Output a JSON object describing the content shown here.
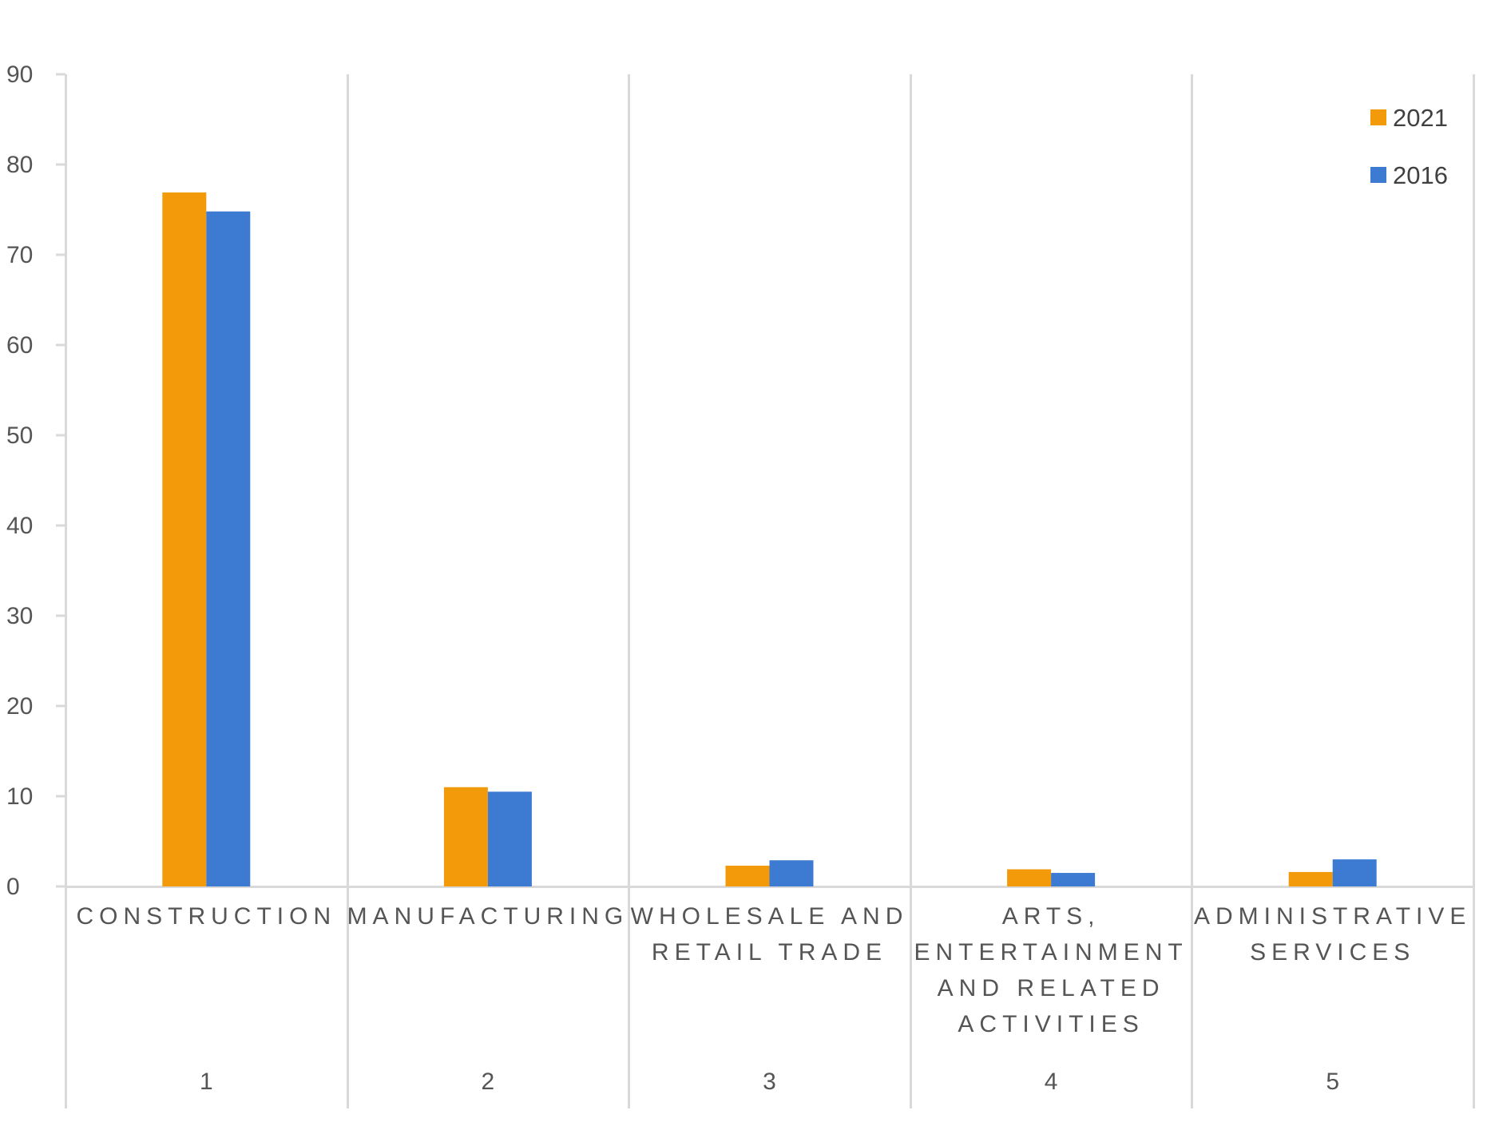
{
  "colors": {
    "series_2021": "#F39A0A",
    "series_2016": "#3C7BD1",
    "grid": "#D9D9D9",
    "text": "#555555"
  },
  "chart_data": {
    "type": "bar",
    "title": "",
    "xlabel": "",
    "ylabel": "",
    "ylim": [
      0,
      90
    ],
    "yticks": [
      0,
      10,
      20,
      30,
      40,
      50,
      60,
      70,
      80,
      90
    ],
    "grid": "vertical separators between categories",
    "legend_position": "top-right",
    "categories": [
      {
        "number": "1",
        "lines": [
          "CONSTRUCTION"
        ]
      },
      {
        "number": "2",
        "lines": [
          "MANUFACTURING"
        ]
      },
      {
        "number": "3",
        "lines": [
          "WHOLESALE AND",
          "RETAIL TRADE"
        ]
      },
      {
        "number": "4",
        "lines": [
          "ARTS,",
          "ENTERTAINMENT",
          "AND RELATED",
          "ACTIVITIES"
        ]
      },
      {
        "number": "5",
        "lines": [
          "ADMINISTRATIVE",
          "SERVICES"
        ]
      }
    ],
    "series": [
      {
        "name": "2021",
        "color": "#F39A0A",
        "values": [
          76.9,
          11.0,
          2.3,
          1.9,
          1.6
        ]
      },
      {
        "name": "2016",
        "color": "#3C7BD1",
        "values": [
          74.8,
          10.5,
          2.9,
          1.5,
          3.0
        ]
      }
    ]
  }
}
